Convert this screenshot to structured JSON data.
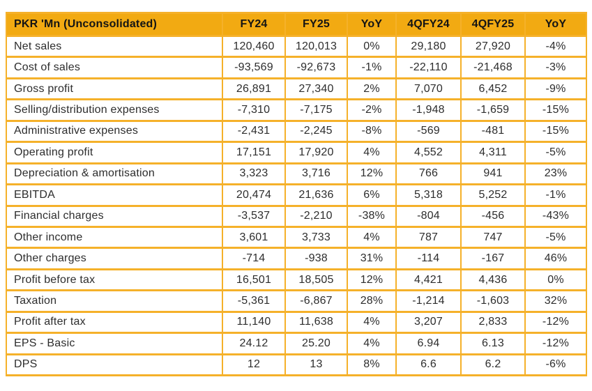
{
  "colors": {
    "header_bg": "#F2AA12",
    "grid": "#F5B12A",
    "body_text": "#2D2D2D",
    "header_text": "#141414",
    "page_bg": "#FFFFFF"
  },
  "table": {
    "header": [
      "PKR 'Mn (Unconsolidated)",
      "FY24",
      "FY25",
      "YoY",
      "4QFY24",
      "4QFY25",
      "YoY"
    ],
    "rows": [
      [
        "Net sales",
        "120,460",
        "120,013",
        "0%",
        "29,180",
        "27,920",
        "-4%"
      ],
      [
        "Cost of sales",
        "-93,569",
        "-92,673",
        "-1%",
        "-22,110",
        "-21,468",
        "-3%"
      ],
      [
        "Gross profit",
        "26,891",
        "27,340",
        "2%",
        "7,070",
        "6,452",
        "-9%"
      ],
      [
        "Selling/distribution expenses",
        "-7,310",
        "-7,175",
        "-2%",
        "-1,948",
        "-1,659",
        "-15%"
      ],
      [
        "Administrative expenses",
        "-2,431",
        "-2,245",
        "-8%",
        "-569",
        "-481",
        "-15%"
      ],
      [
        "Operating profit",
        "17,151",
        "17,920",
        "4%",
        "4,552",
        "4,311",
        "-5%"
      ],
      [
        "Depreciation & amortisation",
        "3,323",
        "3,716",
        "12%",
        "766",
        "941",
        "23%"
      ],
      [
        "EBITDA",
        "20,474",
        "21,636",
        "6%",
        "5,318",
        "5,252",
        "-1%"
      ],
      [
        "Financial charges",
        "-3,537",
        "-2,210",
        "-38%",
        "-804",
        "-456",
        "-43%"
      ],
      [
        "Other income",
        "3,601",
        "3,733",
        "4%",
        "787",
        "747",
        "-5%"
      ],
      [
        "Other charges",
        "-714",
        "-938",
        "31%",
        "-114",
        "-167",
        "46%"
      ],
      [
        "Profit before tax",
        "16,501",
        "18,505",
        "12%",
        "4,421",
        "4,436",
        "0%"
      ],
      [
        "Taxation",
        "-5,361",
        "-6,867",
        "28%",
        "-1,214",
        "-1,603",
        "32%"
      ],
      [
        "Profit after tax",
        "11,140",
        "11,638",
        "4%",
        "3,207",
        "2,833",
        "-12%"
      ],
      [
        "EPS - Basic",
        "24.12",
        "25.20",
        "4%",
        "6.94",
        "6.13",
        "-12%"
      ],
      [
        "DPS",
        "12",
        "13",
        "8%",
        "6.6",
        "6.2",
        "-6%"
      ]
    ]
  }
}
